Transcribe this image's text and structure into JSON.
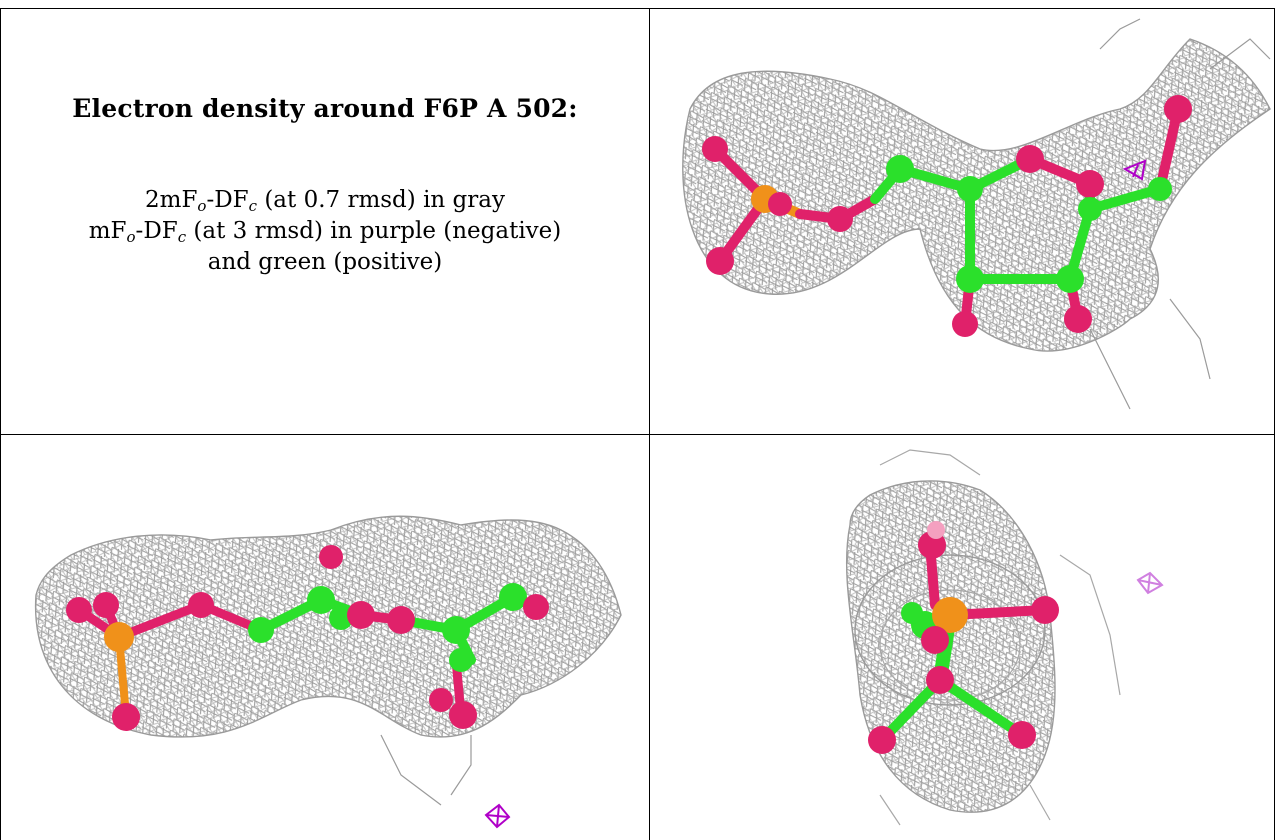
{
  "caption": {
    "title": "Electron density around F6P A 502:",
    "line1": {
      "pre": "2mF",
      "sub1": "o",
      "mid": "-DF",
      "sub2": "c",
      "post": " (at 0.7 rmsd) in gray"
    },
    "line2": {
      "pre": "mF",
      "sub1": "o",
      "mid": "-DF",
      "sub2": "c",
      "post": " (at 3 rmsd) in purple (negative)"
    },
    "line3": "and green (positive)"
  },
  "colors": {
    "mesh": "#9a9a9a",
    "carbon": "#2be02b",
    "oxygen": "#e0216a",
    "phosphorus": "#f0911a",
    "negative_density": "#b000c8"
  },
  "panels": [
    {
      "name": "view-top-right"
    },
    {
      "name": "view-bottom-left"
    },
    {
      "name": "view-bottom-right"
    }
  ]
}
